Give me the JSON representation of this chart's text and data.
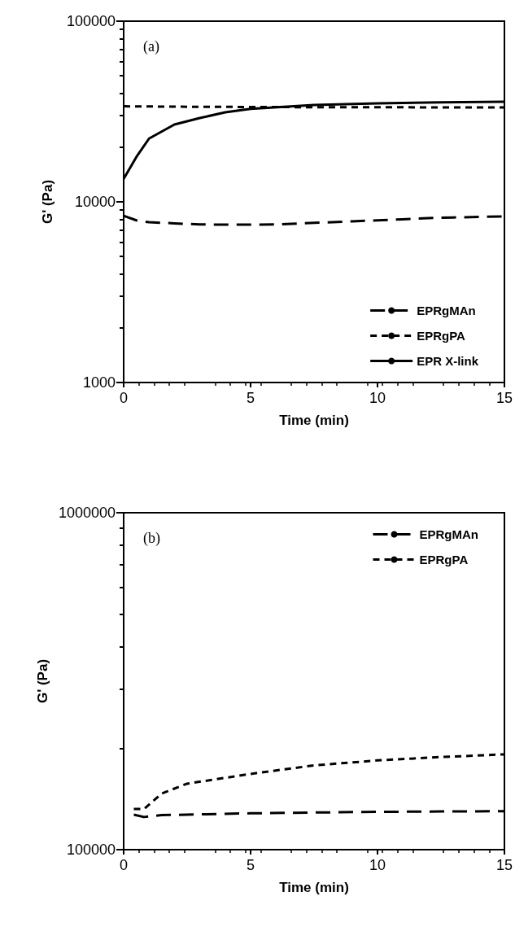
{
  "chart_data": [
    {
      "type": "line",
      "xlabel": "Time (min)",
      "ylabel": "G' (Pa)",
      "annotations": [
        "(a)"
      ],
      "log": "y",
      "xlim": [
        0,
        15
      ],
      "xticks": [
        0,
        5,
        10,
        15
      ],
      "ylim": [
        1000,
        100000
      ],
      "yticks": [
        1000,
        10000,
        100000
      ],
      "legend": "bottom right",
      "grid": false,
      "marker": "none",
      "series": [
        {
          "name": "EPRgMAn",
          "color": "#000000",
          "line_style": "dashed",
          "x": [
            0,
            0.5,
            1,
            2,
            3,
            4,
            5,
            6,
            7,
            8,
            9,
            10,
            11,
            12,
            13,
            14,
            15
          ],
          "values": [
            8380,
            7900,
            7710,
            7600,
            7500,
            7480,
            7480,
            7500,
            7600,
            7700,
            7800,
            7900,
            8000,
            8130,
            8200,
            8250,
            8300
          ]
        },
        {
          "name": "EPRgPA",
          "color": "#000000",
          "line_style": "dashed",
          "x": [
            0,
            2.5,
            5,
            7.5,
            10,
            12.5,
            15
          ],
          "values": [
            33800,
            33600,
            33500,
            33400,
            33400,
            33300,
            33300
          ]
        },
        {
          "name": "EPR X-link",
          "color": "#000000",
          "line_style": "solid",
          "x": [
            0,
            0.5,
            1,
            2,
            3,
            4,
            5,
            7.5,
            10,
            12.5,
            15
          ],
          "values": [
            13400,
            17700,
            22400,
            26800,
            29100,
            31300,
            32700,
            34400,
            35100,
            35500,
            35800
          ]
        }
      ]
    },
    {
      "type": "line",
      "xlabel": "Time (min)",
      "ylabel": "G' (Pa)",
      "annotations": [
        "(b)"
      ],
      "log": "y",
      "xlim": [
        0,
        15
      ],
      "xticks": [
        0,
        5,
        10,
        15
      ],
      "ylim": [
        100000,
        1000000
      ],
      "yticks": [
        100000,
        1000000
      ],
      "legend": "top right",
      "grid": false,
      "marker": "none",
      "series": [
        {
          "name": "EPRgMAn",
          "color": "#000000",
          "line_style": "dashed",
          "x": [
            0.4,
            0.8,
            1.5,
            3,
            5,
            7.5,
            10,
            12.5,
            15
          ],
          "values": [
            127000,
            125000,
            126600,
            127300,
            128200,
            128900,
            129500,
            129800,
            130100
          ]
        },
        {
          "name": "EPRgPA",
          "color": "#000000",
          "line_style": "dashed",
          "x": [
            0.4,
            0.8,
            1.5,
            2.5,
            5,
            7.5,
            10,
            12.5,
            15
          ],
          "values": [
            132000,
            132000,
            146800,
            157000,
            167800,
            177900,
            184000,
            188300,
            191800
          ]
        }
      ]
    }
  ]
}
